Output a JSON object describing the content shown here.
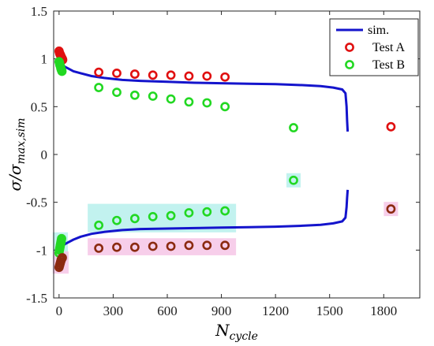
{
  "chart_data": {
    "type": "scatter",
    "xlabel": {
      "main": "N",
      "sub": "cycle"
    },
    "ylabel": {
      "main": "σ/σ",
      "sub": "max,sim"
    },
    "xlim": [
      -30,
      2000
    ],
    "ylim": [
      -1.5,
      1.5
    ],
    "x_ticks": [
      0,
      300,
      600,
      900,
      1200,
      1500,
      1800
    ],
    "x_tick_labels": [
      "0",
      "300",
      "600",
      "900",
      "1200",
      "1500",
      "1800"
    ],
    "y_ticks": [
      1.5,
      1,
      0.5,
      0,
      -0.5,
      -1,
      -1.5
    ],
    "y_tick_labels": [
      "1.5",
      "1",
      "0.5",
      "0",
      "-0.5",
      "-1",
      "-1.5"
    ],
    "legend": {
      "position": "top-right",
      "entries": [
        {
          "label": "sim.",
          "marker": "line",
          "color": "#1414cc"
        },
        {
          "label": "Test A",
          "marker": "circle",
          "color": "#e01010"
        },
        {
          "label": "Test B",
          "marker": "circle",
          "color": "#22d822"
        }
      ]
    },
    "series": [
      {
        "name": "sim.",
        "kind": "line",
        "color": "#1414cc",
        "upper": {
          "x": [
            0,
            5,
            15,
            30,
            50,
            80,
            120,
            180,
            250,
            350,
            450,
            600,
            750,
            900,
            1050,
            1200,
            1350,
            1450,
            1520,
            1570,
            1588,
            1594,
            1597,
            1600
          ],
          "y": [
            1.0,
            0.98,
            0.95,
            0.92,
            0.9,
            0.87,
            0.85,
            0.82,
            0.8,
            0.78,
            0.77,
            0.76,
            0.75,
            0.745,
            0.74,
            0.735,
            0.725,
            0.715,
            0.7,
            0.68,
            0.64,
            0.5,
            0.35,
            0.24
          ]
        },
        "lower": {
          "x": [
            0,
            5,
            15,
            30,
            50,
            80,
            120,
            180,
            250,
            350,
            450,
            600,
            750,
            900,
            1050,
            1200,
            1350,
            1450,
            1520,
            1570,
            1588,
            1594,
            1597,
            1600
          ],
          "y": [
            -1.03,
            -1.0,
            -0.97,
            -0.94,
            -0.92,
            -0.89,
            -0.86,
            -0.83,
            -0.81,
            -0.79,
            -0.78,
            -0.775,
            -0.77,
            -0.765,
            -0.76,
            -0.755,
            -0.745,
            -0.735,
            -0.72,
            -0.7,
            -0.66,
            -0.55,
            -0.45,
            -0.37
          ]
        }
      },
      {
        "name": "Test A",
        "kind": "markers",
        "color": "#e01010",
        "points": [
          {
            "x": 0,
            "y": 1.08
          },
          {
            "x": 3,
            "y": 1.06
          },
          {
            "x": 5,
            "y": 1.05
          },
          {
            "x": 8,
            "y": 1.04
          },
          {
            "x": 10,
            "y": 1.03
          },
          {
            "x": 12,
            "y": 1.02
          },
          {
            "x": 15,
            "y": 1.01
          },
          {
            "x": 18,
            "y": 1.0
          },
          {
            "x": 20,
            "y": 0.99
          },
          {
            "x": 220,
            "y": 0.86
          },
          {
            "x": 320,
            "y": 0.85
          },
          {
            "x": 420,
            "y": 0.84
          },
          {
            "x": 520,
            "y": 0.83
          },
          {
            "x": 620,
            "y": 0.83
          },
          {
            "x": 720,
            "y": 0.82
          },
          {
            "x": 820,
            "y": 0.82
          },
          {
            "x": 920,
            "y": 0.81
          },
          {
            "x": 1840,
            "y": 0.29
          }
        ]
      },
      {
        "name": "Test B",
        "kind": "markers",
        "color": "#22d822",
        "points": [
          {
            "x": 0,
            "y": 0.97
          },
          {
            "x": 2,
            "y": 0.96
          },
          {
            "x": 4,
            "y": 0.94
          },
          {
            "x": 6,
            "y": 0.93
          },
          {
            "x": 8,
            "y": 0.92
          },
          {
            "x": 10,
            "y": 0.9
          },
          {
            "x": 12,
            "y": 0.89
          },
          {
            "x": 14,
            "y": 0.88
          },
          {
            "x": 16,
            "y": 0.87
          },
          {
            "x": 220,
            "y": 0.7
          },
          {
            "x": 320,
            "y": 0.65
          },
          {
            "x": 420,
            "y": 0.62
          },
          {
            "x": 520,
            "y": 0.61
          },
          {
            "x": 620,
            "y": 0.58
          },
          {
            "x": 720,
            "y": 0.55
          },
          {
            "x": 820,
            "y": 0.54
          },
          {
            "x": 920,
            "y": 0.5
          },
          {
            "x": 1300,
            "y": 0.28
          }
        ]
      },
      {
        "name": "",
        "kind": "markers",
        "color": "#22d822",
        "highlight": "#b7f0ec",
        "points": [
          {
            "x": 0,
            "y": -1.03
          },
          {
            "x": 2,
            "y": -1.0
          },
          {
            "x": 4,
            "y": -0.98
          },
          {
            "x": 6,
            "y": -0.96
          },
          {
            "x": 8,
            "y": -0.94
          },
          {
            "x": 10,
            "y": -0.92
          },
          {
            "x": 12,
            "y": -0.9
          },
          {
            "x": 14,
            "y": -0.88
          },
          {
            "x": 220,
            "y": -0.74
          },
          {
            "x": 320,
            "y": -0.69
          },
          {
            "x": 420,
            "y": -0.67
          },
          {
            "x": 520,
            "y": -0.65
          },
          {
            "x": 620,
            "y": -0.64
          },
          {
            "x": 720,
            "y": -0.61
          },
          {
            "x": 820,
            "y": -0.6
          },
          {
            "x": 920,
            "y": -0.59
          },
          {
            "x": 1300,
            "y": -0.27
          }
        ]
      },
      {
        "name": "",
        "kind": "markers",
        "color": "#8b2a10",
        "highlight": "#f6c6e6",
        "points": [
          {
            "x": 0,
            "y": -1.18
          },
          {
            "x": 3,
            "y": -1.16
          },
          {
            "x": 6,
            "y": -1.14
          },
          {
            "x": 9,
            "y": -1.12
          },
          {
            "x": 12,
            "y": -1.1
          },
          {
            "x": 15,
            "y": -1.09
          },
          {
            "x": 18,
            "y": -1.08
          },
          {
            "x": 220,
            "y": -0.98
          },
          {
            "x": 320,
            "y": -0.97
          },
          {
            "x": 420,
            "y": -0.97
          },
          {
            "x": 520,
            "y": -0.96
          },
          {
            "x": 620,
            "y": -0.96
          },
          {
            "x": 720,
            "y": -0.95
          },
          {
            "x": 820,
            "y": -0.95
          },
          {
            "x": 920,
            "y": -0.95
          },
          {
            "x": 1840,
            "y": -0.57
          }
        ]
      }
    ]
  }
}
